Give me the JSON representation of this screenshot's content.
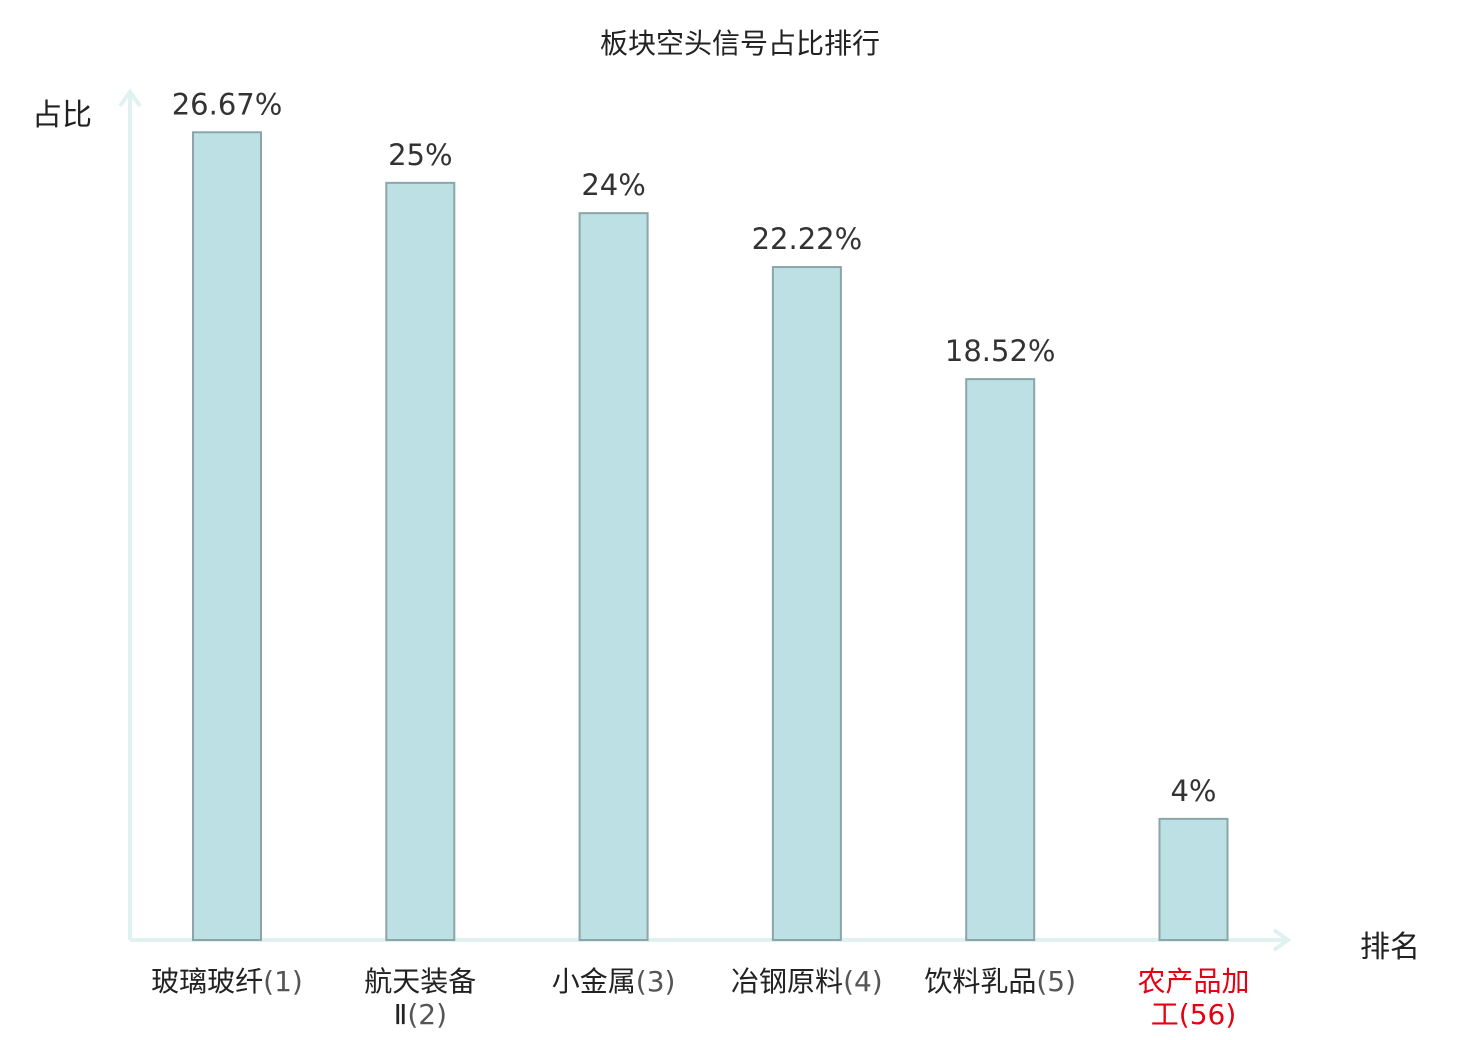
{
  "chart_data": {
    "type": "bar",
    "title": "板块空头信号占比排行",
    "xlabel": "排名",
    "ylabel": "占比",
    "ylim": [
      0,
      28
    ],
    "grid": false,
    "categories": [
      {
        "name": "玻璃玻纤",
        "rank": "(1)"
      },
      {
        "name": "航天装备Ⅱ",
        "rank": "(2)"
      },
      {
        "name": "小金属",
        "rank": "(3)"
      },
      {
        "name": "冶钢原料",
        "rank": "(4)"
      },
      {
        "name": "饮料乳品",
        "rank": "(5)"
      },
      {
        "name": "农产品加工",
        "rank": "(56)"
      }
    ],
    "values": [
      26.67,
      25,
      24,
      22.22,
      18.52,
      4
    ],
    "value_labels": [
      "26.67%",
      "25%",
      "24%",
      "22.22%",
      "18.52%",
      "4%"
    ],
    "colors": {
      "bar_fill": "#bce0e3",
      "bar_stroke": "#8aa6a8",
      "axis": "#dff2ef",
      "highlight_text": "#e60012"
    },
    "highlight_index": 5
  }
}
